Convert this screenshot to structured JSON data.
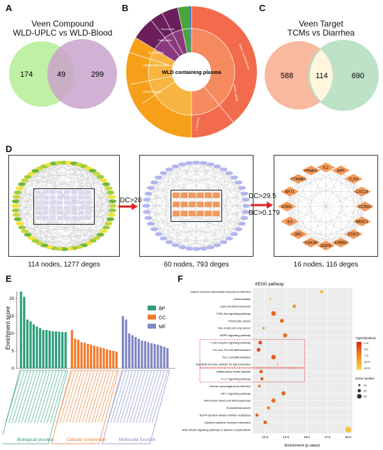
{
  "panels": {
    "a": "A",
    "b": "B",
    "c": "C",
    "d": "D",
    "e": "E",
    "f": "F"
  },
  "venn_a": {
    "title": "Veen Compound",
    "left": "WLD-UPLC",
    "vs": "vs",
    "right": "WLD-Blood",
    "left_only": "174",
    "overlap": "49",
    "right_only": "299",
    "colors": {
      "left": "#b8f09a",
      "right": "#c9a3cc"
    }
  },
  "sunburst": {
    "center_title": "WLD containing plasma",
    "labels": [
      "Amino acids",
      "Ginsenosides",
      "Alkaloid glycosides",
      "Ceramides",
      "Fatty acids",
      "Glucosides",
      "L-Tyrosine",
      "Indole-3-acetaldehyde"
    ],
    "colors": {
      "outer": "#f26b4c",
      "inner": "#ff8a5c",
      "orange": "#f6a01a",
      "purple": "#6a1e5c",
      "green": "#4aa43c",
      "blue": "#3c70c8"
    }
  },
  "venn_c": {
    "title": "Veen Target",
    "left": "TCMs",
    "vs": "vs",
    "right": "Diarrhea",
    "left_only": "588",
    "overlap": "114",
    "right_only": "690",
    "colors": {
      "left": "#f8b99e",
      "right": "#b7dfc2"
    }
  },
  "network": {
    "step1": "DC>20",
    "step2a": "DC>29.5",
    "step2b": "BC>0.179",
    "caption1": "114 nodes, 1277 deges",
    "caption2": "60 nodes, 793 deges",
    "caption3": "16 nodes, 116 deges",
    "core_nodes": [
      "IL2",
      "APP",
      "TLR4",
      "CXCL8",
      "CCND1",
      "NR3C1",
      "STAT3",
      "ERBB2",
      "EGFR",
      "GSK3B",
      "SRC",
      "IL6",
      "ESR1",
      "AKT1",
      "CTNNB1",
      "PPARG"
    ]
  },
  "chart_data": [
    {
      "type": "bar",
      "ylabel": "Enrichment score",
      "ylim": [
        0,
        22
      ],
      "yticks": [
        "0",
        "5",
        "10",
        "15",
        "20"
      ],
      "legend": [
        {
          "name": "BP",
          "color": "#2e9e7c"
        },
        {
          "name": "CC",
          "color": "#f07a2c"
        },
        {
          "name": "MF",
          "color": "#7f87c4"
        }
      ],
      "series": [
        {
          "name": "BP",
          "values": [
            22,
            20.5,
            14,
            13.5,
            12.6,
            12,
            11.5,
            11,
            11,
            10.8,
            10.6,
            10.6,
            10.5,
            10.4,
            10.4
          ]
        },
        {
          "name": "CC",
          "values": [
            11,
            8.5,
            8.2,
            7.5,
            7.3,
            7,
            6.8,
            6.5,
            6.3,
            6,
            5.8,
            5.5,
            5.2,
            5,
            4.8
          ]
        },
        {
          "name": "MF",
          "values": [
            15,
            14,
            10,
            9.5,
            9,
            8.5,
            8,
            7.8,
            7.5,
            7.2,
            7,
            6.8,
            6.5,
            6.2,
            5.8
          ]
        }
      ],
      "groups": [
        "Biological process",
        "Cellular component",
        "Molecular function"
      ],
      "colors": [
        "#2e9e7c",
        "#f07a2c",
        "#7f87c4"
      ]
    },
    {
      "type": "scatter",
      "title": "KEGG pathway",
      "xlabel": "Enrichment (p value)",
      "xlim": [
        8.5,
        20.5
      ],
      "xticks": [
        "10.0",
        "12.5",
        "15.0",
        "17.5",
        "20.0"
      ],
      "legend_color_title": "-log10(Qvalue)",
      "legend_color_ticks": [
        "-12.5",
        "-10.0",
        "-7.5",
        "-5.0",
        "-2.5"
      ],
      "legend_size_title": "Gene number",
      "legend_size_ticks": [
        "10",
        "15",
        "20"
      ],
      "categories": [
        "Kaposi sarcoma-associated herpesvirus infection",
        "Leishmaniasis",
        "Lipid and atherosclerosis",
        "PI3K-Akt signaling pathway",
        "Pancreatic cancer",
        "Non-small cell lung cancer",
        "MAPK signaling pathway",
        "T cell receptor signaling pathway",
        "Th1 and Th2 cell differentiation",
        "Th17 cell differentiation",
        "Intestinal immune network for IgA production",
        "Inflammatory bowel disease",
        "IL-17 signaling pathway",
        "Human cytomegalovirus infection",
        "HIF-1 signaling pathway",
        "Fluid shear stress and atherosclerosis",
        "Endometrial cancer",
        "EGFR tyrosine kinase inhibitor resistance",
        "Cytokine-cytokine receptor interaction",
        "AGE-RAGE signaling pathway in diabetic complications"
      ],
      "x": [
        16.8,
        10.6,
        13.5,
        11.0,
        12.0,
        9.8,
        12.4,
        9.4,
        9.2,
        11.0,
        11.5,
        9.5,
        9.6,
        9.3,
        12.2,
        11.0,
        10.4,
        9.0,
        10.0,
        20.0
      ],
      "highlighted": [
        "T cell receptor signaling pathway",
        "Th1 and Th2 cell differentiation",
        "Th17 cell differentiation",
        "Inflammatory bowel disease",
        "IL-17 signaling pathway"
      ]
    }
  ]
}
